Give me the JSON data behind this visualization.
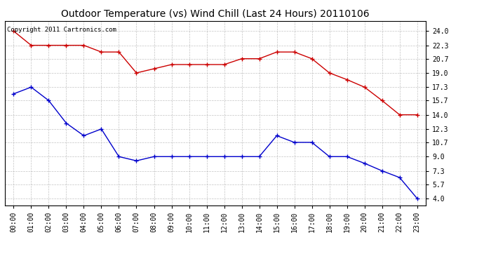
{
  "title": "Outdoor Temperature (vs) Wind Chill (Last 24 Hours) 20110106",
  "copyright_text": "Copyright 2011 Cartronics.com",
  "x_labels": [
    "00:00",
    "01:00",
    "02:00",
    "03:00",
    "04:00",
    "05:00",
    "06:00",
    "07:00",
    "08:00",
    "09:00",
    "10:00",
    "11:00",
    "12:00",
    "13:00",
    "14:00",
    "15:00",
    "16:00",
    "17:00",
    "18:00",
    "19:00",
    "20:00",
    "21:00",
    "22:00",
    "23:00"
  ],
  "temp_data": [
    24.0,
    22.3,
    22.3,
    22.3,
    22.3,
    21.5,
    21.5,
    19.0,
    19.5,
    20.0,
    20.0,
    20.0,
    20.0,
    20.7,
    20.7,
    21.5,
    21.5,
    20.7,
    19.0,
    18.2,
    17.3,
    15.7,
    14.0,
    14.0
  ],
  "wind_chill_data": [
    16.5,
    17.3,
    15.7,
    13.0,
    11.5,
    12.3,
    9.0,
    8.5,
    9.0,
    9.0,
    9.0,
    9.0,
    9.0,
    9.0,
    9.0,
    11.5,
    10.7,
    10.7,
    9.0,
    9.0,
    8.2,
    7.3,
    6.5,
    4.0
  ],
  "temp_color": "#cc0000",
  "wind_chill_color": "#0000cc",
  "yticks": [
    4.0,
    5.7,
    7.3,
    9.0,
    10.7,
    12.3,
    14.0,
    15.7,
    17.3,
    19.0,
    20.7,
    22.3,
    24.0
  ],
  "ylim": [
    3.2,
    25.2
  ],
  "background_color": "#ffffff",
  "grid_color": "#aaaaaa",
  "title_fontsize": 10,
  "tick_fontsize": 7,
  "copyright_fontsize": 6.5
}
